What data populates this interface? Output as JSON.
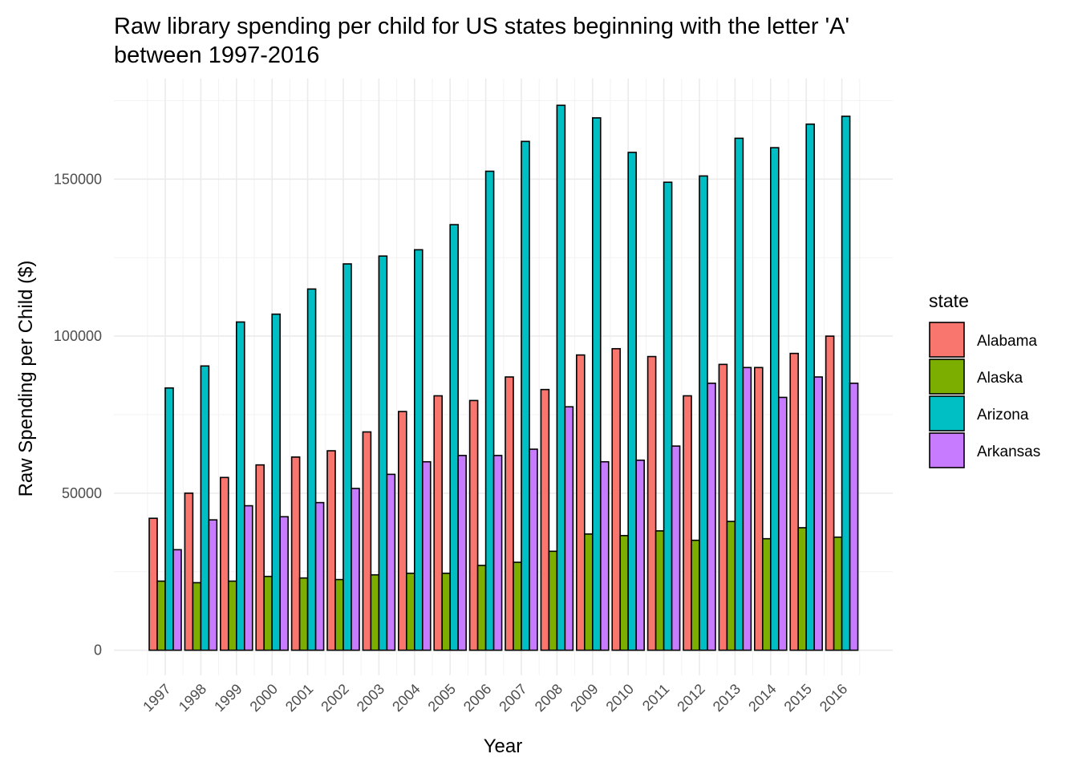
{
  "chart_data": {
    "type": "bar",
    "title_lines": [
      "Raw library spending per child for US states beginning with the letter 'A'",
      "between 1997-2016"
    ],
    "xlabel": "Year",
    "ylabel": "Raw Spending per Child ($)",
    "ylim": [
      -8000,
      182000
    ],
    "y_ticks": [
      0,
      50000,
      100000,
      150000
    ],
    "y_tick_labels": [
      "0",
      "50000",
      "100000",
      "150000"
    ],
    "grid": true,
    "legend_position": "right",
    "legend_title": "state",
    "categories": [
      "1997",
      "1998",
      "1999",
      "2000",
      "2001",
      "2002",
      "2003",
      "2004",
      "2005",
      "2006",
      "2007",
      "2008",
      "2009",
      "2010",
      "2011",
      "2012",
      "2013",
      "2014",
      "2015",
      "2016"
    ],
    "series": [
      {
        "name": "Alabama",
        "color": "#F8766D",
        "values": [
          42000,
          50000,
          55000,
          59000,
          61500,
          63500,
          69500,
          76000,
          81000,
          79500,
          87000,
          83000,
          94000,
          96000,
          93500,
          81000,
          91000,
          90000,
          94500,
          100000
        ]
      },
      {
        "name": "Alaska",
        "color": "#7CAE00",
        "values": [
          22000,
          21500,
          22000,
          23500,
          23000,
          22500,
          24000,
          24500,
          24500,
          27000,
          28000,
          31500,
          37000,
          36500,
          38000,
          35000,
          41000,
          35500,
          39000,
          36000
        ]
      },
      {
        "name": "Arizona",
        "color": "#00BFC4",
        "values": [
          83500,
          90500,
          104500,
          107000,
          115000,
          123000,
          125500,
          127500,
          135500,
          152500,
          162000,
          173500,
          169500,
          158500,
          149000,
          151000,
          163000,
          160000,
          167500,
          170000
        ]
      },
      {
        "name": "Arkansas",
        "color": "#C77CFF",
        "values": [
          32000,
          41500,
          46000,
          42500,
          47000,
          51500,
          56000,
          60000,
          62000,
          62000,
          64000,
          77500,
          60000,
          60500,
          65000,
          85000,
          90000,
          80500,
          87000,
          85000
        ]
      }
    ]
  }
}
